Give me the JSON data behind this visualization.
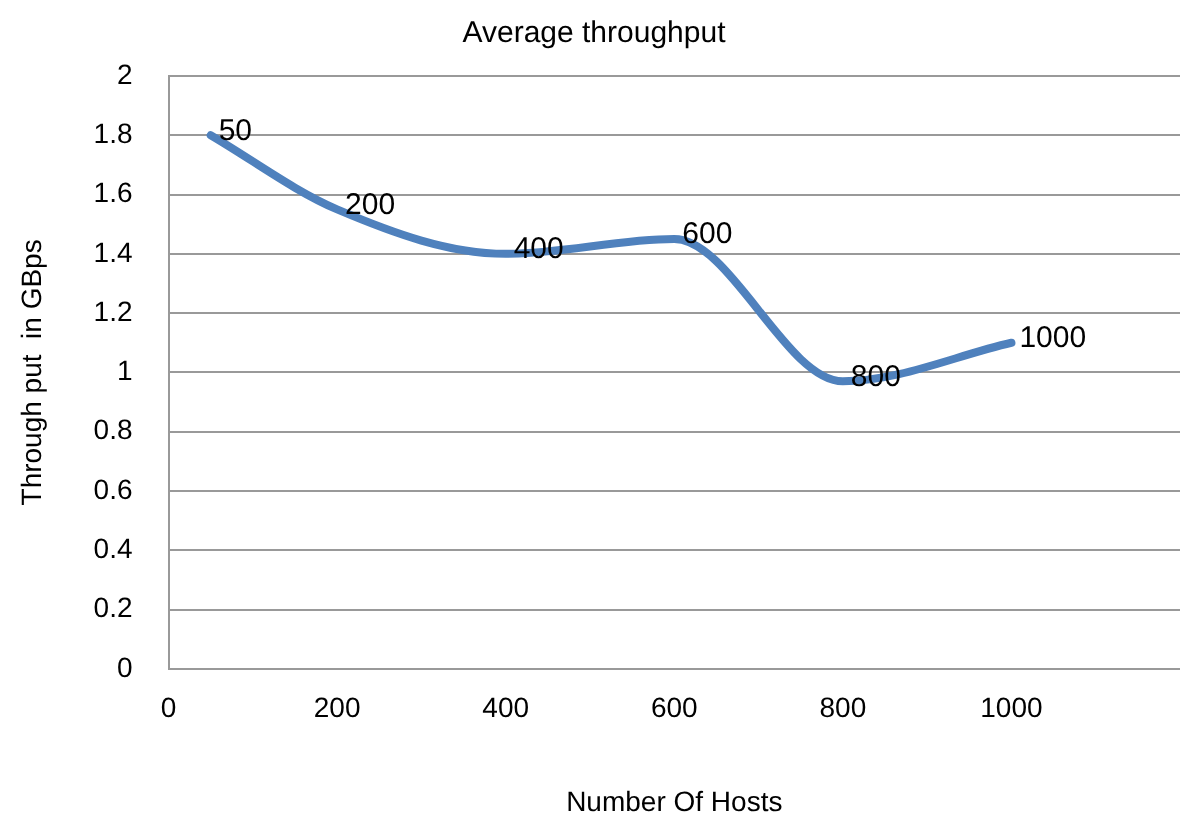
{
  "chart_data": {
    "type": "line",
    "title": "Average throughput",
    "xlabel": "Number Of Hosts",
    "ylabel": "Through put  in GBps",
    "x": [
      50,
      200,
      400,
      600,
      800,
      1000
    ],
    "series": [
      {
        "color": "#4f81bd",
        "values": [
          1.8,
          1.55,
          1.4,
          1.45,
          0.97,
          1.1
        ]
      }
    ],
    "annotations": [
      {
        "text": "50",
        "x": 50,
        "y": 1.8
      },
      {
        "text": "200",
        "x": 200,
        "y": 1.55
      },
      {
        "text": "400",
        "x": 400,
        "y": 1.4
      },
      {
        "text": "600",
        "x": 600,
        "y": 1.45
      },
      {
        "text": "800",
        "x": 800,
        "y": 0.97
      },
      {
        "text": "1000",
        "x": 1000,
        "y": 1.1
      }
    ],
    "xlim": [
      0,
      1200
    ],
    "xticks": [
      0,
      200,
      400,
      600,
      800,
      1000
    ],
    "ylim": [
      0,
      2
    ],
    "yticks": [
      0,
      0.2,
      0.4,
      0.6,
      0.8,
      1,
      1.2,
      1.4,
      1.6,
      1.8,
      2
    ],
    "grid": "y",
    "legend": false,
    "marker": "none",
    "line_style": "solid"
  }
}
